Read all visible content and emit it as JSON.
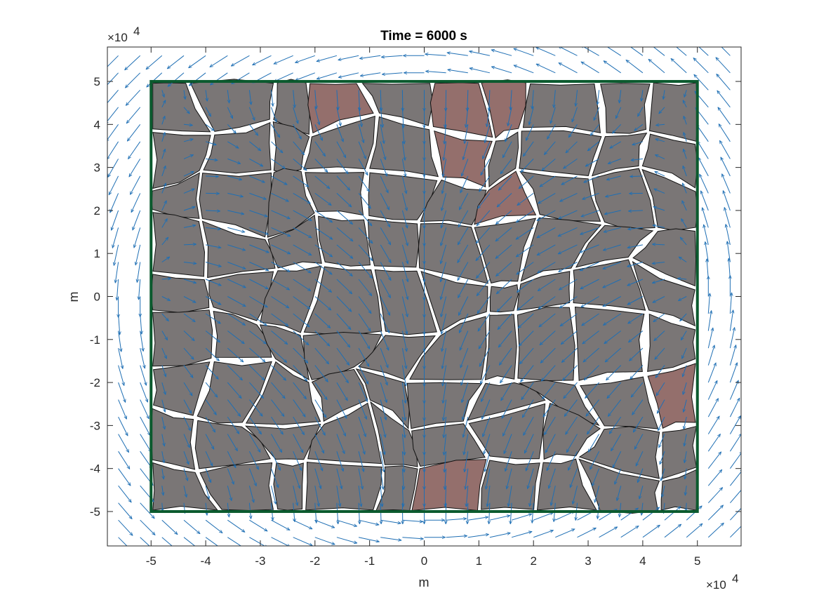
{
  "chart_data": {
    "type": "quiver",
    "title": "Time = 6000 s",
    "xlabel": "m",
    "ylabel": "m",
    "x_exponent_label": "×10",
    "x_exponent_power": "4",
    "y_exponent_label": "×10",
    "y_exponent_power": "4",
    "xlim": [
      -58000,
      58000
    ],
    "ylim": [
      -58000,
      58000
    ],
    "xticks": [
      -5,
      -4,
      -3,
      -2,
      -1,
      0,
      1,
      2,
      3,
      4,
      5
    ],
    "yticks": [
      -5,
      -4,
      -3,
      -2,
      -1,
      0,
      1,
      2,
      3,
      4,
      5
    ],
    "tick_scale": 10000,
    "grid": false,
    "domain_box": {
      "x": [
        -50000,
        50000
      ],
      "y": [
        -50000,
        50000
      ],
      "color": "#0b5a2e"
    },
    "quiver": {
      "color": "#1f6fb4",
      "description_values": "gyre flow: counter-rotating fields",
      "x_range": [
        -56000,
        56000
      ],
      "y_range": [
        -56000,
        56000
      ],
      "step": 4000
    },
    "floes": {
      "fill": "#7a7676",
      "fill_tinted": "#946f6c",
      "edge": "#111111"
    }
  }
}
